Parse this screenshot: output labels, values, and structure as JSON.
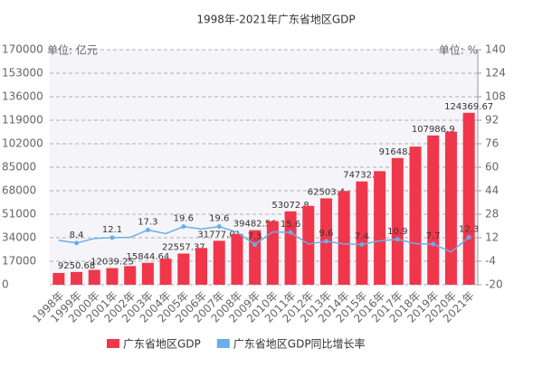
{
  "chart_data": {
    "type": "bar_line",
    "title": "1998年-2021年广东省地区GDP",
    "y_unit": "单位: 亿元",
    "y2_unit": "单位: %",
    "categories": [
      "1998年",
      "1999年",
      "2000年",
      "2001年",
      "2002年",
      "2003年",
      "2004年",
      "2005年",
      "2006年",
      "2007年",
      "2008年",
      "2009年",
      "2010年",
      "2011年",
      "2012年",
      "2013年",
      "2014年",
      "2015年",
      "2016年",
      "2017年",
      "2018年",
      "2019年",
      "2020年",
      "2021年"
    ],
    "series": [
      {
        "name": "广东省地区GDP",
        "color": "#f0364b",
        "kind": "bar",
        "values": [
          8530.88,
          9250.68,
          10741.25,
          12039.25,
          13502.42,
          15844.64,
          18864.62,
          22557.37,
          26587.76,
          31777.01,
          36796.71,
          39482.56,
          46013.06,
          53072.8,
          57067.92,
          62503.4,
          67809.85,
          74732.4,
          82163.22,
          91648.7,
          99945.22,
          107986.9,
          110760.94,
          124369.67
        ],
        "value_labels": [
          null,
          "9250.68",
          null,
          "12039.25",
          null,
          "15844.64",
          null,
          "22557.37",
          null,
          "31777.01",
          null,
          "39482.56",
          null,
          "53072.8",
          null,
          "62503.4",
          null,
          "74732.4",
          null,
          "91648.7",
          null,
          "107986.9",
          null,
          "124369.67"
        ]
      },
      {
        "name": "广东省地区GDP同比增长率",
        "color": "#6aaee8",
        "kind": "line",
        "axis": "y2",
        "values": [
          10.2,
          8.4,
          11.5,
          12.1,
          12.2,
          17.3,
          14.8,
          19.6,
          17.9,
          19.6,
          15.8,
          7.3,
          16.0,
          15.6,
          7.7,
          9.6,
          7.8,
          7.4,
          9.9,
          10.9,
          8.0,
          7.7,
          2.3,
          12.3
        ],
        "value_labels": [
          null,
          "8.4",
          null,
          "12.1",
          null,
          "17.3",
          null,
          "19.6",
          null,
          "19.6",
          null,
          "7.3",
          null,
          "15.6",
          null,
          "9.6",
          null,
          "7.4",
          null,
          "10.9",
          null,
          "7.7",
          null,
          "12.3"
        ]
      }
    ],
    "ylim": [
      0,
      170000
    ],
    "yticks": [
      0,
      17000,
      34000,
      51000,
      68000,
      85000,
      102000,
      119000,
      136000,
      153000,
      170000
    ],
    "y2lim": [
      -20,
      140
    ],
    "y2ticks": [
      -20,
      -4,
      12,
      28,
      44,
      60,
      76,
      92,
      108,
      124,
      140
    ],
    "grid": true
  }
}
